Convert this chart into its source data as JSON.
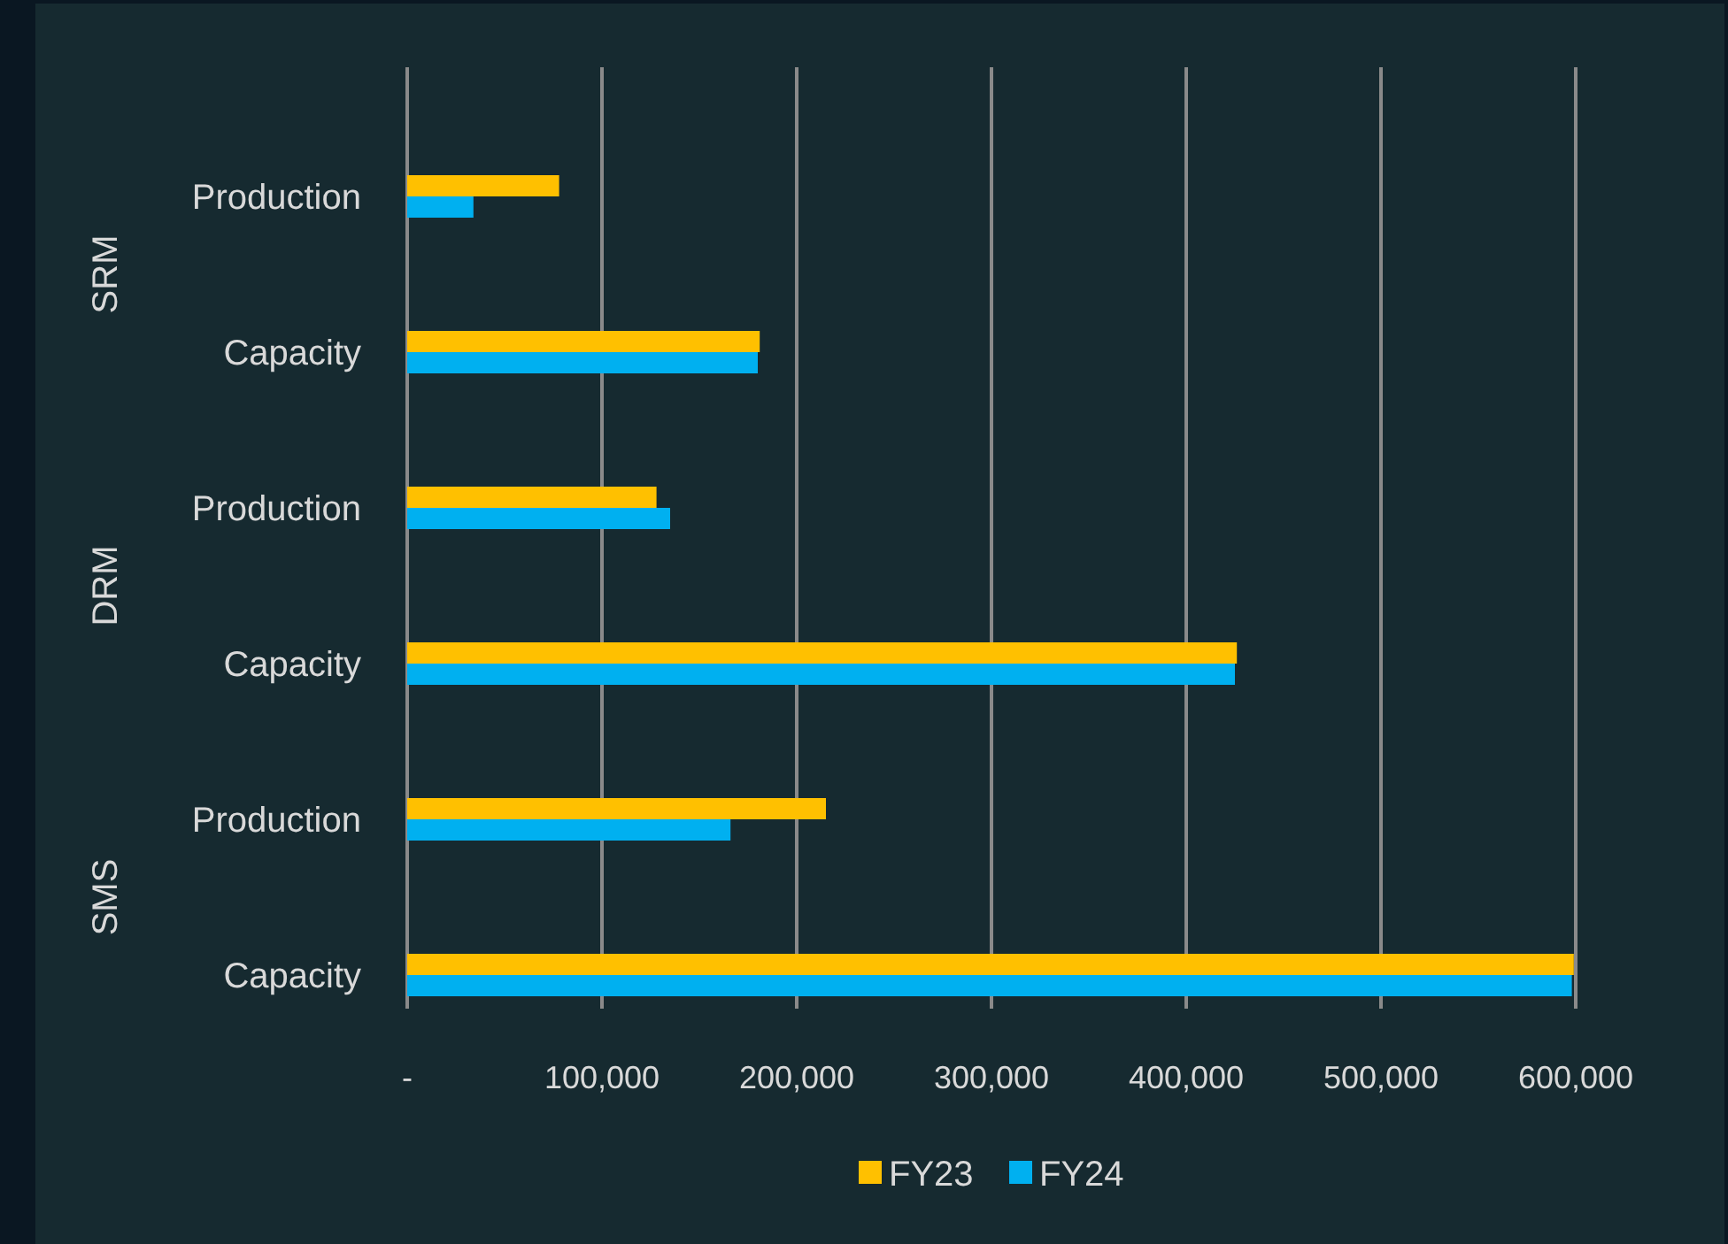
{
  "chart_data": {
    "type": "bar",
    "orientation": "horizontal",
    "categories": [
      "Production",
      "Capacity",
      "Production",
      "Capacity",
      "Production",
      "Capacity"
    ],
    "series": [
      {
        "name": "FY23",
        "color": "#ffc000",
        "values": [
          78000,
          181000,
          128000,
          426000,
          215000,
          599000
        ]
      },
      {
        "name": "FY24",
        "color": "#00b0f0",
        "values": [
          34000,
          180000,
          135000,
          425000,
          166000,
          598000
        ]
      }
    ],
    "xlim": [
      0,
      600000
    ],
    "xticks": [
      {
        "value": 0,
        "label": "-"
      },
      {
        "value": 100000,
        "label": "100,000"
      },
      {
        "value": 200000,
        "label": "200,000"
      },
      {
        "value": 300000,
        "label": "300,000"
      },
      {
        "value": 400000,
        "label": "400,000"
      },
      {
        "value": 500000,
        "label": "500,000"
      },
      {
        "value": 600000,
        "label": "600,000"
      }
    ],
    "annotations": [
      "SRM",
      "DRM",
      "SMS"
    ],
    "grid": "x",
    "legend": "bottom"
  }
}
